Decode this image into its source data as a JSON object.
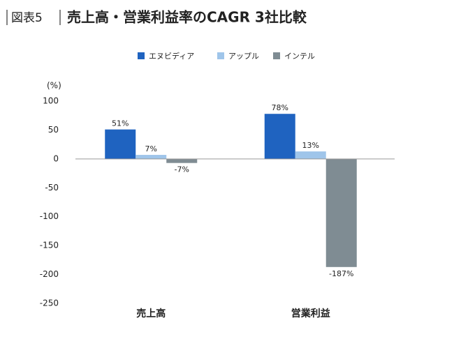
{
  "chart_data": {
    "type": "bar",
    "figure_label": "図表5",
    "title": "売上高・営業利益率のCAGR 3社比較",
    "y_label": "(%)",
    "categories": [
      "売上高",
      "営業利益"
    ],
    "series": [
      {
        "name": "エヌビディア",
        "color": "#1f63c0",
        "values": [
          51,
          78
        ],
        "value_labels": [
          "51%",
          "78%"
        ]
      },
      {
        "name": "アップル",
        "color": "#9fc5ea",
        "values": [
          7,
          13
        ],
        "value_labels": [
          "7%",
          "13%"
        ]
      },
      {
        "name": "インテル",
        "color": "#7f8c93",
        "values": [
          -7,
          -187
        ],
        "value_labels": [
          "-7%",
          "-187%"
        ]
      }
    ],
    "ylim": [
      -250,
      100
    ],
    "yticks": [
      100,
      50,
      0,
      -50,
      -100,
      -150,
      -200,
      -250
    ],
    "legend": "top"
  }
}
